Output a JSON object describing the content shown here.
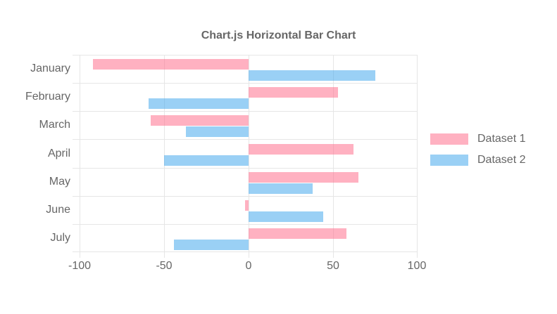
{
  "chart_data": {
    "type": "bar",
    "orientation": "horizontal",
    "title": "Chart.js Horizontal Bar Chart",
    "categories": [
      "January",
      "February",
      "March",
      "April",
      "May",
      "June",
      "July"
    ],
    "series": [
      {
        "name": "Dataset 1",
        "color": "#ffb1c1",
        "fill": "rgba(255,99,132,0.5)",
        "values": [
          -92,
          53,
          -58,
          62,
          65,
          -2,
          58
        ]
      },
      {
        "name": "Dataset 2",
        "color": "#9ad0f5",
        "fill": "rgba(54,162,235,0.5)",
        "values": [
          75,
          -59,
          -37,
          -50,
          38,
          44,
          -44
        ]
      }
    ],
    "x_ticks": [
      -100,
      -50,
      0,
      50,
      100
    ],
    "xlim": [
      -100,
      100
    ],
    "grid": true,
    "legend_position": "right",
    "text_color": "#666666",
    "grid_color": "#e6e6e6"
  }
}
